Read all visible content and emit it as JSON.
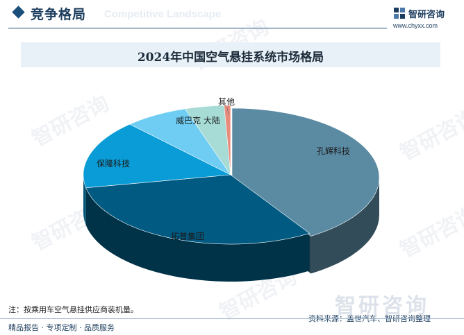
{
  "header": {
    "title": "竞争格局",
    "ghost_text": "Competitive Landscape"
  },
  "logo": {
    "name": "智研咨询",
    "url": "www.chyxx.com"
  },
  "watermark": {
    "text": "智研咨询"
  },
  "chart_data": {
    "type": "pie",
    "title": "2024年中国空气悬挂系统市场格局",
    "style": "3d-exploded-first-slice",
    "slices": [
      {
        "label": "孔辉科技",
        "value": 41,
        "color": "#5b8aa3"
      },
      {
        "label": "拓普集团",
        "value": 31,
        "color": "#005a82"
      },
      {
        "label": "保隆科技",
        "value": 16,
        "color": "#0a9cd6"
      },
      {
        "label": "威巴克 大陆",
        "value": 7,
        "color": "#6fcdf4"
      },
      {
        "label": "其他",
        "value": 4.3,
        "color": "#a6dbd6"
      },
      {
        "label": "",
        "value": 0.7,
        "color": "#e88b7a"
      }
    ],
    "note": "注：按乘用车空气悬挂供应商装机量。",
    "source": "资料来源：盖世汽车、智研咨询整理"
  },
  "footer": {
    "text": "精品报告 · 专项定制 · 品质服务"
  }
}
